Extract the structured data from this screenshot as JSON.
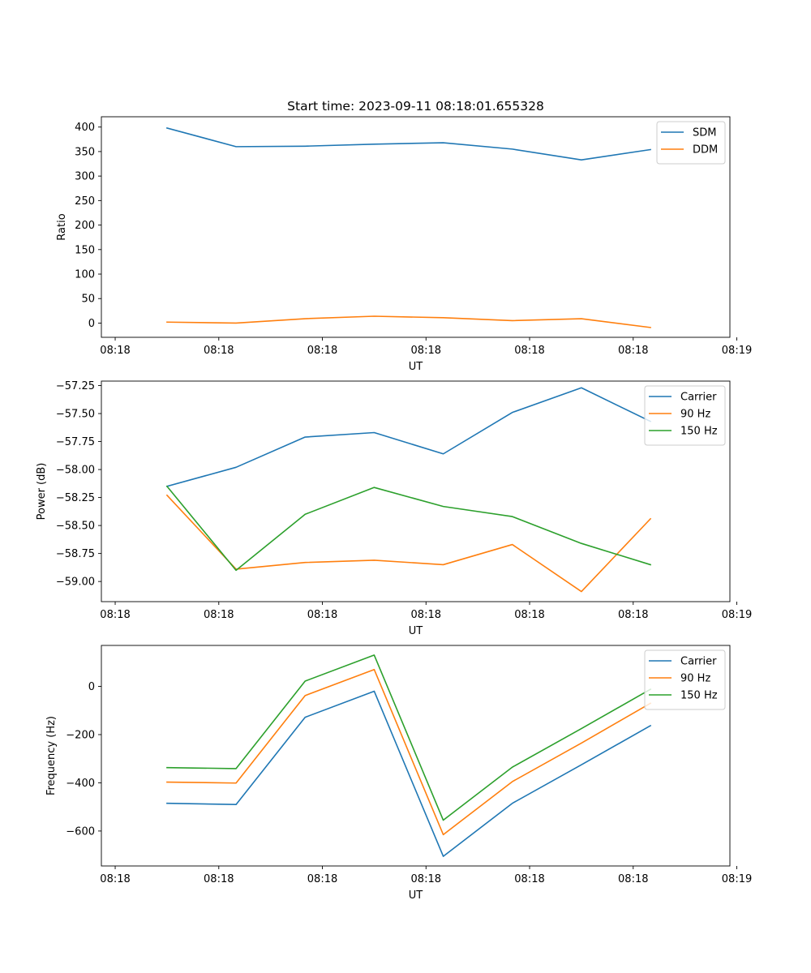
{
  "chart_data": [
    {
      "type": "line",
      "title": "Start time: 2023-09-11 08:18:01.655328",
      "xlabel": "UT",
      "ylabel": "Ratio",
      "x_tick_labels": [
        "08:18",
        "08:18",
        "08:18",
        "08:18",
        "08:18",
        "08:18",
        "08:19"
      ],
      "xlim": [
        -0.2,
        8.9
      ],
      "x_ticks": [
        0,
        1.5,
        3,
        4.5,
        6,
        7.5,
        9
      ],
      "x": [
        0.75,
        1.75,
        2.75,
        3.75,
        4.75,
        5.75,
        6.75,
        7.75
      ],
      "ylim": [
        -29,
        421
      ],
      "y_ticks": [
        0,
        50,
        100,
        150,
        200,
        250,
        300,
        350,
        400
      ],
      "y_tick_labels": [
        "0",
        "50",
        "100",
        "150",
        "200",
        "250",
        "300",
        "350",
        "400"
      ],
      "legend_position": "top-right",
      "series": [
        {
          "name": "SDM",
          "color": "#1f77b4",
          "values": [
            398,
            360,
            361,
            365,
            368,
            355,
            333,
            354
          ]
        },
        {
          "name": "DDM",
          "color": "#ff7f0e",
          "values": [
            2,
            0,
            9,
            14,
            11,
            5,
            9,
            -9
          ]
        }
      ]
    },
    {
      "type": "line",
      "title": "",
      "xlabel": "UT",
      "ylabel": "Power (dB)",
      "x_tick_labels": [
        "08:18",
        "08:18",
        "08:18",
        "08:18",
        "08:18",
        "08:18",
        "08:19"
      ],
      "xlim": [
        -0.2,
        8.9
      ],
      "x_ticks": [
        0,
        1.5,
        3,
        4.5,
        6,
        7.5,
        9
      ],
      "x": [
        0.75,
        1.75,
        2.75,
        3.75,
        4.75,
        5.75,
        6.75,
        7.75
      ],
      "ylim": [
        -59.18,
        -57.21
      ],
      "y_ticks": [
        -59.0,
        -58.75,
        -58.5,
        -58.25,
        -58.0,
        -57.75,
        -57.5,
        -57.25
      ],
      "y_tick_labels": [
        "−59.00",
        "−58.75",
        "−58.50",
        "−58.25",
        "−58.00",
        "−57.75",
        "−57.50",
        "−57.25"
      ],
      "legend_position": "top-right",
      "series": [
        {
          "name": "Carrier",
          "color": "#1f77b4",
          "values": [
            -58.15,
            -57.98,
            -57.71,
            -57.67,
            -57.86,
            -57.49,
            -57.27,
            -57.57
          ]
        },
        {
          "name": "90 Hz",
          "color": "#ff7f0e",
          "values": [
            -58.23,
            -58.89,
            -58.83,
            -58.81,
            -58.85,
            -58.67,
            -59.09,
            -58.44
          ]
        },
        {
          "name": "150 Hz",
          "color": "#2ca02c",
          "values": [
            -58.15,
            -58.9,
            -58.4,
            -58.16,
            -58.33,
            -58.42,
            -58.66,
            -58.85
          ]
        }
      ]
    },
    {
      "type": "line",
      "title": "",
      "xlabel": "UT",
      "ylabel": "Frequency (Hz)",
      "x_tick_labels": [
        "08:18",
        "08:18",
        "08:18",
        "08:18",
        "08:18",
        "08:18",
        "08:19"
      ],
      "xlim": [
        -0.2,
        8.9
      ],
      "x_ticks": [
        0,
        1.5,
        3,
        4.5,
        6,
        7.5,
        9
      ],
      "x": [
        0.75,
        1.75,
        2.75,
        3.75,
        4.75,
        5.75,
        6.75,
        7.75
      ],
      "ylim": [
        -745,
        170
      ],
      "y_ticks": [
        -600,
        -400,
        -200,
        0
      ],
      "y_tick_labels": [
        "−600",
        "−400",
        "−200",
        "0"
      ],
      "legend_position": "top-right",
      "series": [
        {
          "name": "Carrier",
          "color": "#1f77b4",
          "values": [
            -485,
            -490,
            -128,
            -20,
            -705,
            -485,
            -325,
            -163
          ]
        },
        {
          "name": "90 Hz",
          "color": "#ff7f0e",
          "values": [
            -397,
            -401,
            -38,
            70,
            -615,
            -395,
            -235,
            -70
          ]
        },
        {
          "name": "150 Hz",
          "color": "#2ca02c",
          "values": [
            -337,
            -341,
            22,
            130,
            -555,
            -335,
            -175,
            -12
          ]
        }
      ]
    }
  ]
}
